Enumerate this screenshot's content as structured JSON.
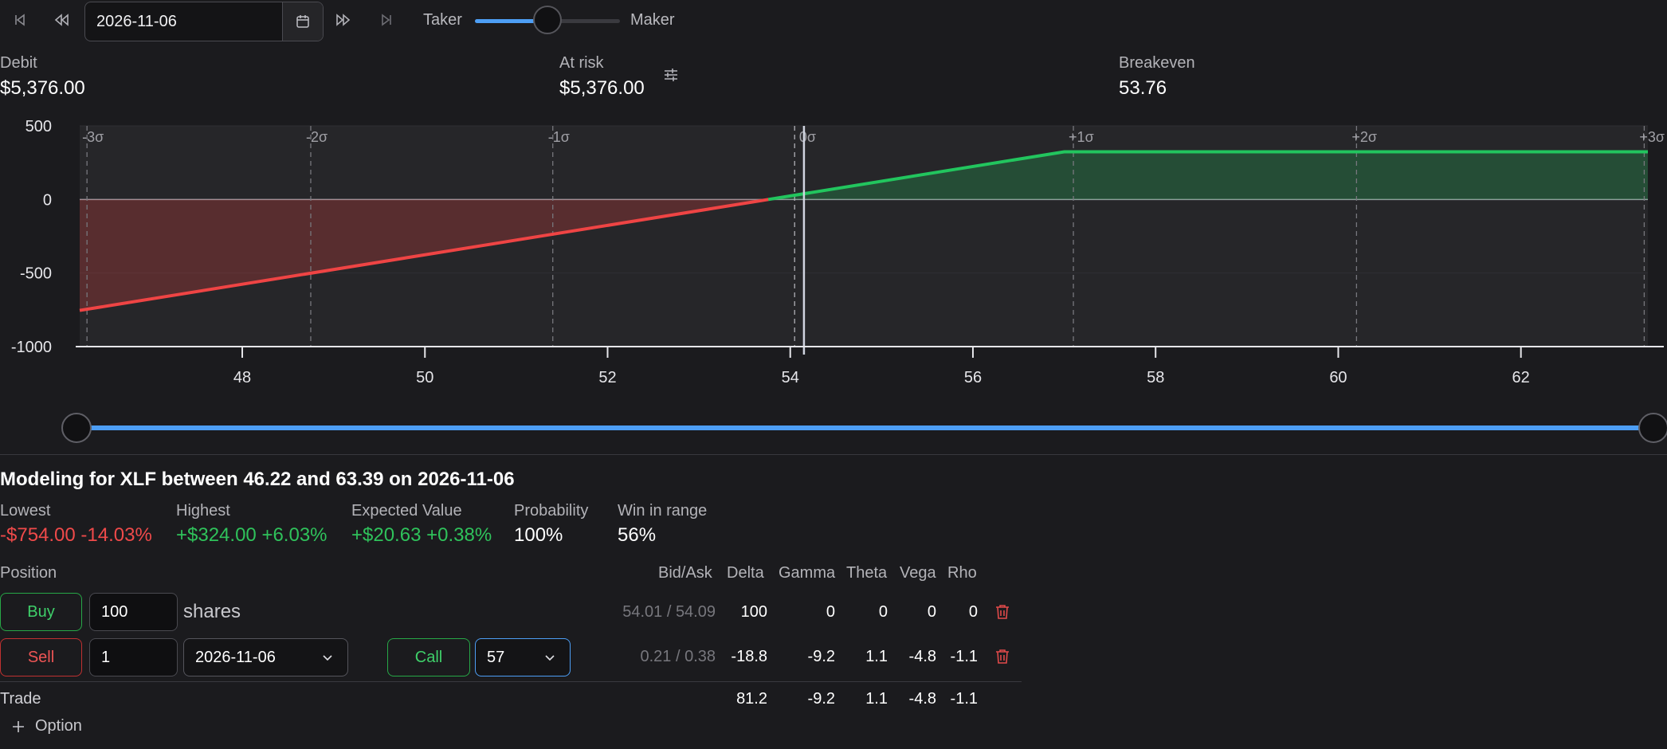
{
  "toolbar": {
    "date_value": "2026-11-06",
    "taker_label": "Taker",
    "maker_label": "Maker",
    "taker_maker_level": 0.5
  },
  "stats": {
    "debit_label": "Debit",
    "debit_value": "$5,376.00",
    "at_risk_label": "At risk",
    "at_risk_value": "$5,376.00",
    "breakeven_label": "Breakeven",
    "breakeven_value": "53.76"
  },
  "chart_data": {
    "type": "area",
    "x": [
      46.22,
      53.76,
      57,
      63.39
    ],
    "y": [
      -754,
      0,
      324,
      324
    ],
    "xlim": [
      46.22,
      63.39
    ],
    "ylim": [
      -1000,
      500
    ],
    "x_ticks": [
      "48",
      "50",
      "52",
      "54",
      "56",
      "58",
      "60",
      "62"
    ],
    "y_ticks": [
      "500",
      "0",
      "-500",
      "-1000"
    ],
    "sigma_labels": [
      "-3σ",
      "-2σ",
      "-1σ",
      "0σ",
      "+1σ",
      "+2σ",
      "+3σ"
    ],
    "sigma_x": [
      46.3,
      48.75,
      51.4,
      54.15,
      57.1,
      60.2,
      63.35
    ],
    "current_price": 54.15,
    "breakeven": 53.76,
    "colors": {
      "loss": "#ef4444",
      "profit": "#22c55e"
    }
  },
  "range": {
    "low": 46.22,
    "high": 63.39
  },
  "modeling": {
    "title": "Modeling for XLF between 46.22 and 63.39 on 2026-11-06",
    "lowest_label": "Lowest",
    "lowest_value": "-$754.00 -14.03%",
    "highest_label": "Highest",
    "highest_value": "+$324.00 +6.03%",
    "ev_label": "Expected Value",
    "ev_value": "+$20.63 +0.38%",
    "prob_label": "Probability",
    "prob_value": "100%",
    "win_label": "Win in range",
    "win_value": "56%"
  },
  "positions": {
    "header_position": "Position",
    "headers": [
      "Bid/Ask",
      "Delta",
      "Gamma",
      "Theta",
      "Vega",
      "Rho"
    ],
    "row1": {
      "side": "Buy",
      "qty": "100",
      "unit": "shares",
      "bid_ask": "54.01 / 54.09",
      "delta": "100",
      "gamma": "0",
      "theta": "0",
      "vega": "0",
      "rho": "0"
    },
    "row2": {
      "side": "Sell",
      "qty": "1",
      "expiry": "2026-11-06",
      "type": "Call",
      "strike": "57",
      "bid_ask": "0.21 / 0.38",
      "delta": "-18.8",
      "gamma": "-9.2",
      "theta": "1.1",
      "vega": "-4.8",
      "rho": "-1.1"
    },
    "trade": {
      "label": "Trade",
      "delta": "81.2",
      "gamma": "-9.2",
      "theta": "1.1",
      "vega": "-4.8",
      "rho": "-1.1"
    },
    "add_option_label": "Option"
  }
}
